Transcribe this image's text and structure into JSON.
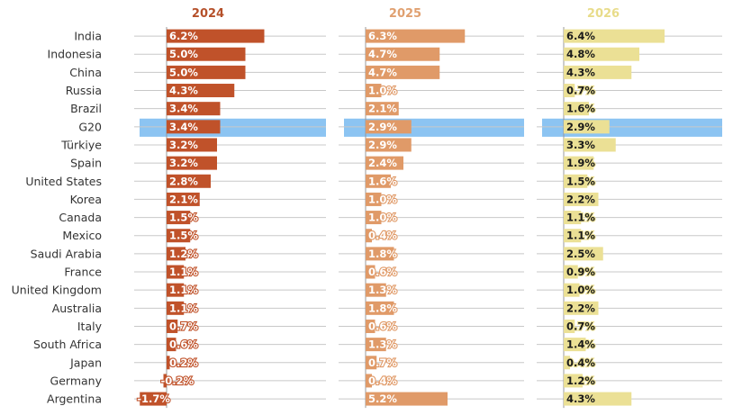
{
  "chart_data": {
    "type": "bar",
    "orientation": "horizontal",
    "unit": "%",
    "categories": [
      "India",
      "Indonesia",
      "China",
      "Russia",
      "Brazil",
      "G20",
      "Türkiye",
      "Spain",
      "United States",
      "Korea",
      "Canada",
      "Mexico",
      "Saudi Arabia",
      "France",
      "United Kingdom",
      "Australia",
      "Italy",
      "South Africa",
      "Japan",
      "Germany",
      "Argentina"
    ],
    "highlight": "G20",
    "highlight_color": "#8cc4f2",
    "grid": true,
    "series": [
      {
        "name": "2024",
        "color": "#c0522a",
        "header_color": "#b5502a",
        "label_color": "#ffffff",
        "label_outline": "#c0522a",
        "values": [
          6.2,
          5.0,
          5.0,
          4.3,
          3.4,
          3.4,
          3.2,
          3.2,
          2.8,
          2.1,
          1.5,
          1.5,
          1.2,
          1.1,
          1.1,
          1.1,
          0.7,
          0.6,
          0.2,
          -0.2,
          -1.7
        ]
      },
      {
        "name": "2025",
        "color": "#e09a68",
        "header_color": "#e0a070",
        "label_color": "#ffffff",
        "label_outline": "#e09a68",
        "values": [
          6.3,
          4.7,
          4.7,
          1.0,
          2.1,
          2.9,
          2.9,
          2.4,
          1.6,
          1.0,
          1.0,
          0.4,
          1.8,
          0.6,
          1.3,
          1.8,
          0.6,
          1.3,
          0.7,
          0.4,
          5.2
        ]
      },
      {
        "name": "2026",
        "color": "#ebe095",
        "header_color": "#e8dc8a",
        "label_color": "#1a1a1a",
        "label_outline": "#ebe095",
        "values": [
          6.4,
          4.8,
          4.3,
          0.7,
          1.6,
          2.9,
          3.3,
          1.9,
          1.5,
          2.2,
          1.1,
          1.1,
          2.5,
          0.9,
          1.0,
          2.2,
          0.7,
          1.4,
          0.4,
          1.2,
          4.3
        ]
      }
    ]
  }
}
